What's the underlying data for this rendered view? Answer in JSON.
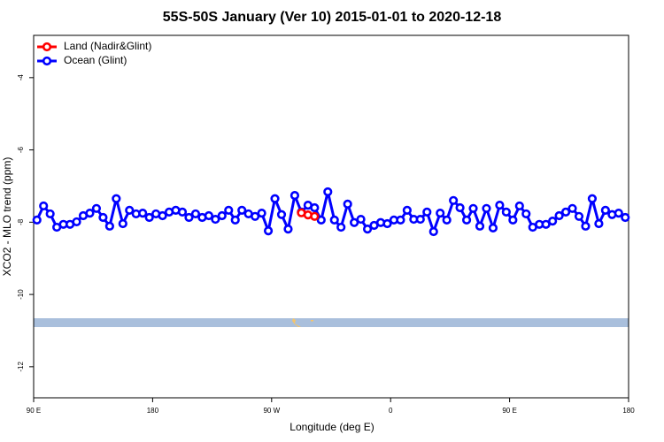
{
  "chart_data": {
    "type": "line",
    "title": "55S-50S January (Ver 10)   2015-01-01 to 2020-12-18",
    "x_label": "Longitude (deg E)",
    "y_label": "XCO2 - MLO trend (ppm)",
    "xlim": [
      90,
      540
    ],
    "ylim": [
      -12.86,
      -2.83
    ],
    "xticks": [
      {
        "value": 90,
        "label": "90 E"
      },
      {
        "value": 180,
        "label": "180"
      },
      {
        "value": 270,
        "label": "90 W"
      },
      {
        "value": 360,
        "label": "0"
      },
      {
        "value": 450,
        "label": "90 E"
      },
      {
        "value": 540,
        "label": "180"
      }
    ],
    "yticks": [
      -4,
      -6,
      -8,
      -10,
      -12
    ],
    "legend": "top-left",
    "series": [
      {
        "name": "Land (Nadir&Glint)",
        "color": "#ff0000",
        "x": [
          292.5,
          297.5,
          302.5
        ],
        "values": [
          -7.74,
          -7.8,
          -7.84
        ]
      },
      {
        "name": "Ocean (Glint)",
        "color": "#0000ff",
        "x": [
          92.5,
          97.5,
          102.5,
          107.5,
          112.5,
          117.5,
          122.5,
          127.5,
          132.5,
          137.5,
          142.5,
          147.5,
          152.5,
          157.5,
          162.5,
          167.5,
          172.5,
          177.5,
          182.5,
          187.5,
          192.5,
          197.5,
          202.5,
          207.5,
          212.5,
          217.5,
          222.5,
          227.5,
          232.5,
          237.5,
          242.5,
          247.5,
          252.5,
          257.5,
          262.5,
          267.5,
          272.5,
          277.5,
          282.5,
          287.5,
          292.5,
          297.5,
          302.5,
          307.5,
          312.5,
          317.5,
          322.5,
          327.5,
          332.5,
          337.5,
          342.5,
          347.5,
          352.5,
          357.5,
          362.5,
          367.5,
          372.5,
          377.5,
          382.5,
          387.5,
          392.5,
          397.5,
          402.5,
          407.5,
          412.5,
          417.5,
          422.5,
          427.5,
          432.5,
          437.5,
          442.5,
          447.5,
          452.5,
          457.5,
          462.5,
          467.5,
          472.5,
          477.5,
          482.5,
          487.5,
          492.5,
          497.5,
          502.5,
          507.5,
          512.5,
          517.5,
          522.5,
          527.5,
          532.5,
          537.5
        ],
        "values": [
          -7.94,
          -7.55,
          -7.77,
          -8.14,
          -8.06,
          -8.06,
          -7.99,
          -7.82,
          -7.75,
          -7.62,
          -7.87,
          -8.11,
          -7.35,
          -8.04,
          -7.67,
          -7.77,
          -7.75,
          -7.87,
          -7.77,
          -7.82,
          -7.72,
          -7.67,
          -7.72,
          -7.87,
          -7.77,
          -7.87,
          -7.82,
          -7.92,
          -7.82,
          -7.67,
          -7.94,
          -7.67,
          -7.77,
          -7.84,
          -7.75,
          -8.24,
          -7.35,
          -7.79,
          -8.19,
          -7.26,
          -7.72,
          -7.53,
          -7.6,
          -7.94,
          -7.16,
          -7.94,
          -8.14,
          -7.5,
          -8.01,
          -7.92,
          -8.19,
          -8.09,
          -8.01,
          -8.04,
          -7.94,
          -7.94,
          -7.67,
          -7.92,
          -7.92,
          -7.72,
          -8.26,
          -7.75,
          -7.94,
          -7.4,
          -7.6,
          -7.94,
          -7.62,
          -8.11,
          -7.62,
          -8.16,
          -7.53,
          -7.72,
          -7.94,
          -7.55,
          -7.77,
          -8.14,
          -8.06,
          -8.06,
          -7.97,
          -7.82,
          -7.72,
          -7.62,
          -7.84,
          -8.11,
          -7.35,
          -8.04,
          -7.67,
          -7.79,
          -7.75,
          -7.87
        ]
      }
    ]
  }
}
